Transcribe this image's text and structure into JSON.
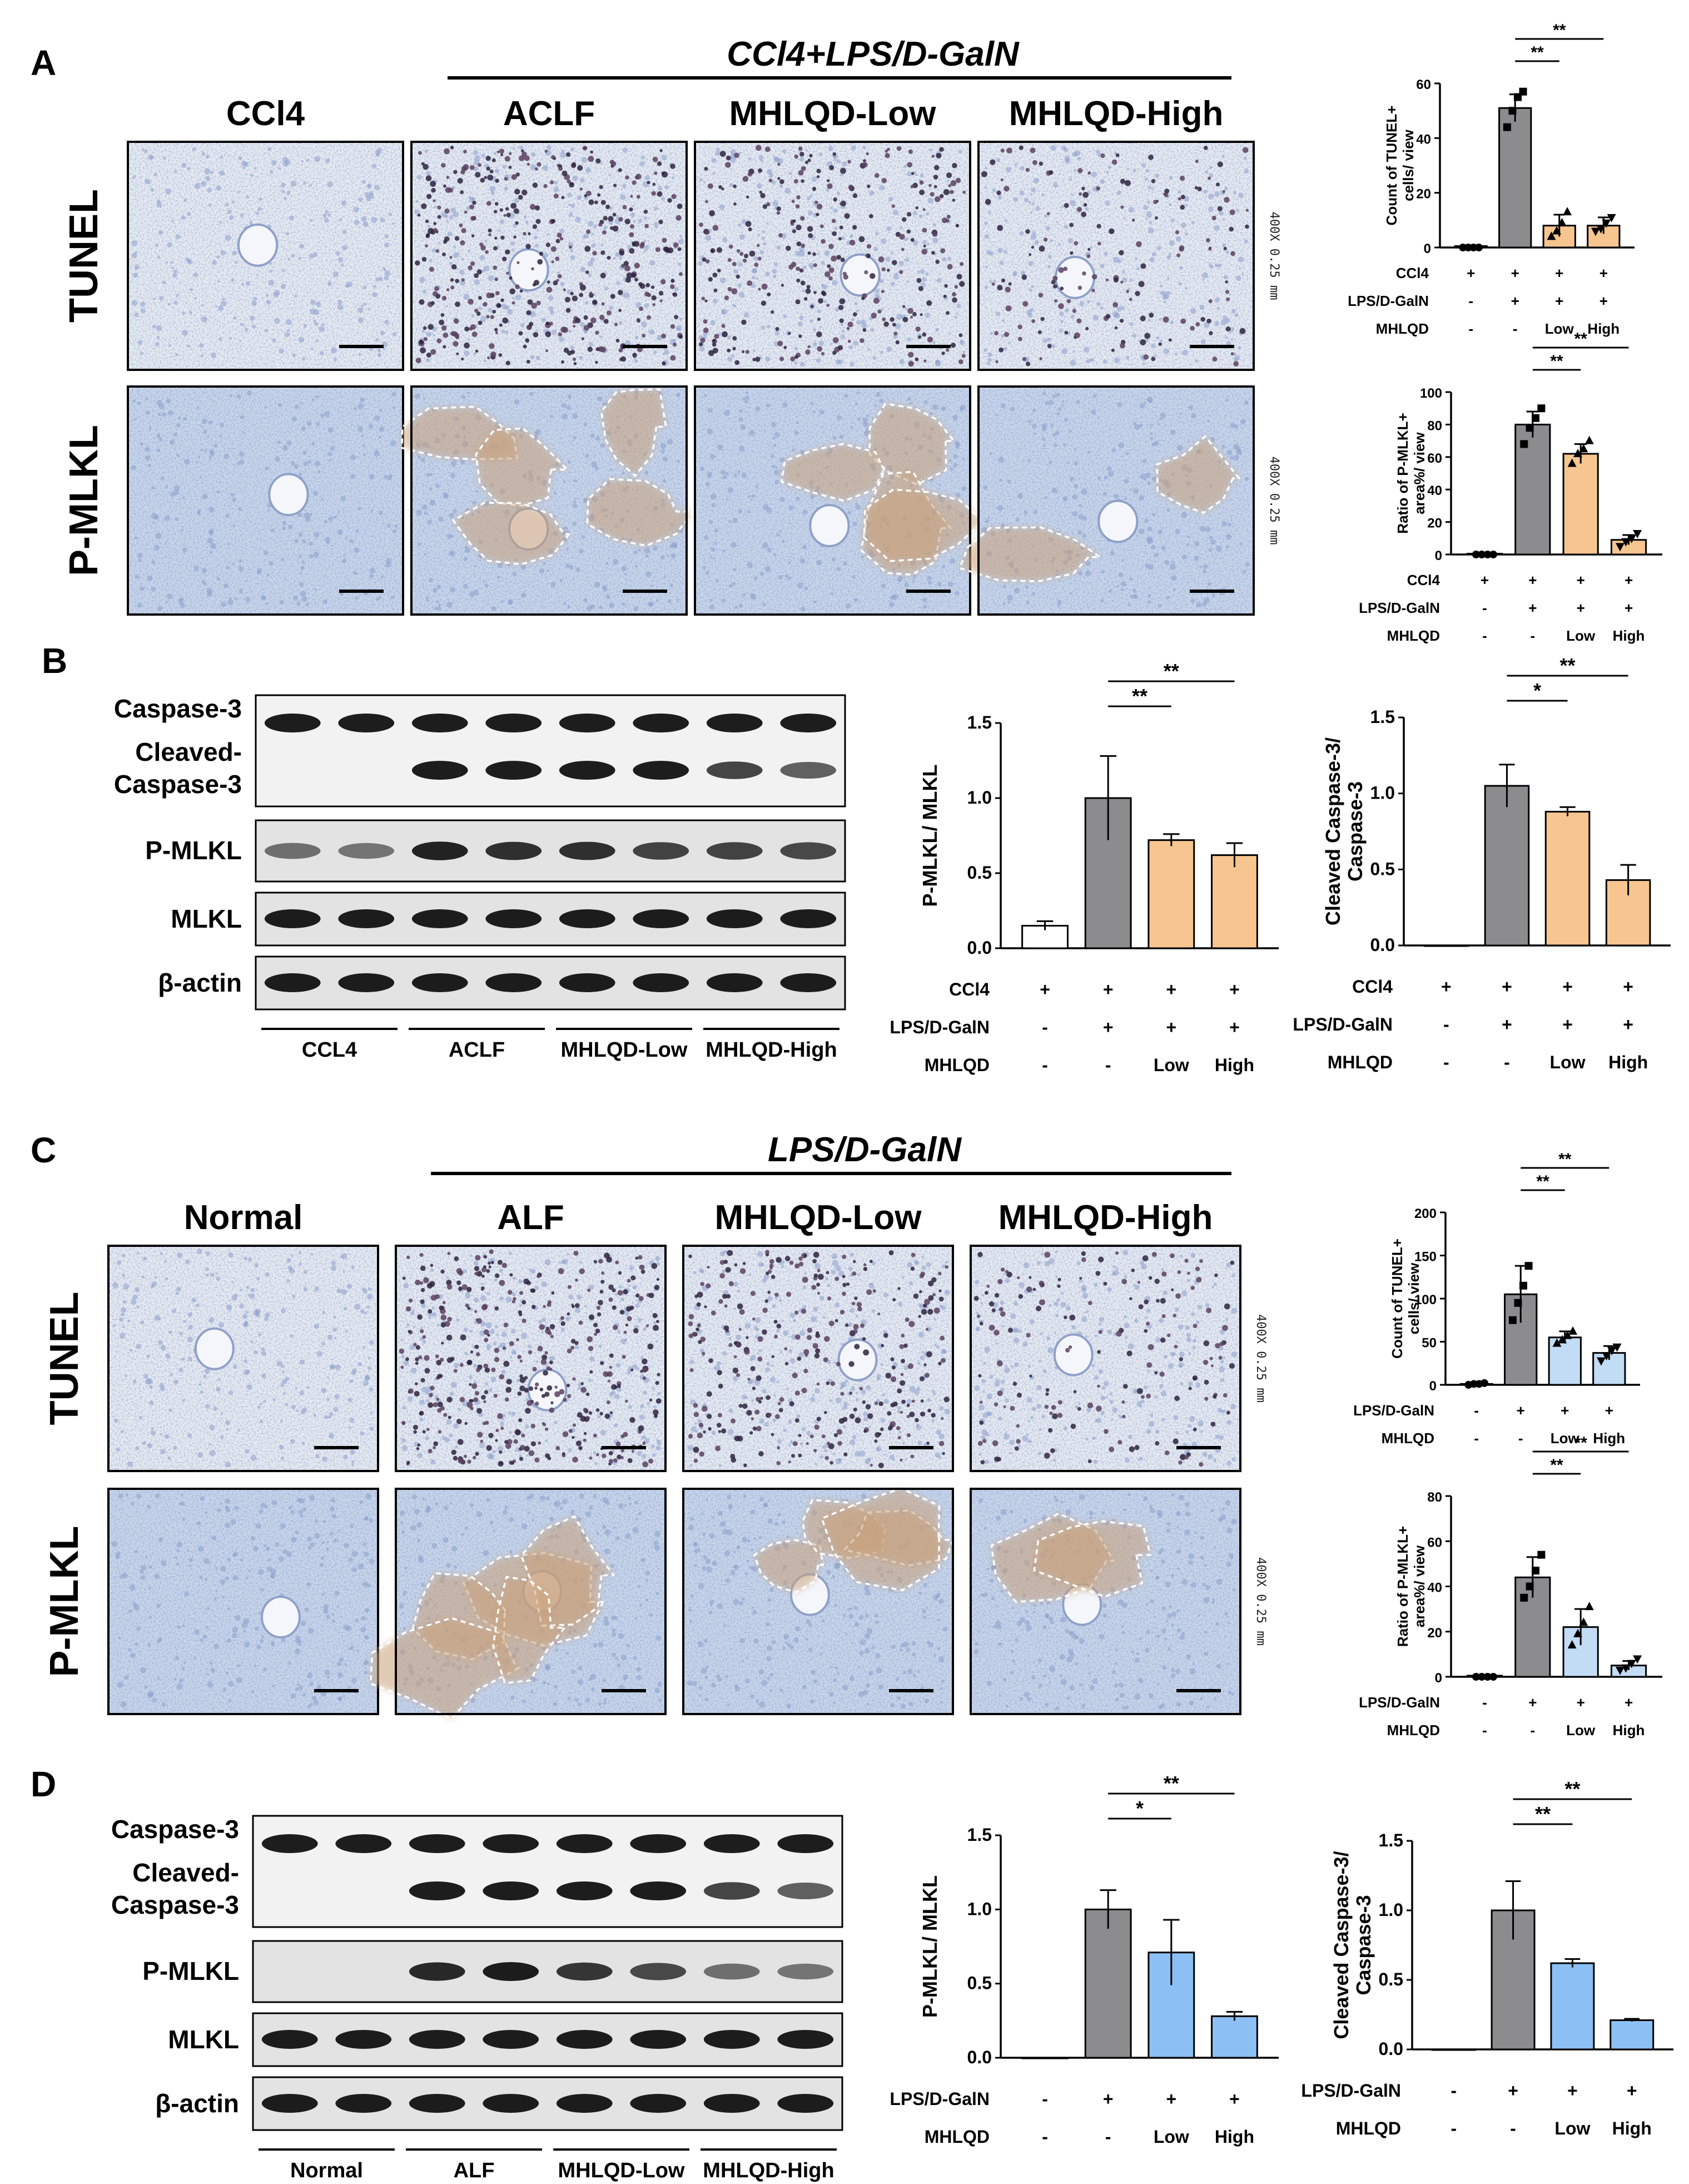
{
  "panels": {
    "A": {
      "letter": "A",
      "group_title": "CCl4+LPS/D-GalN",
      "columns": [
        "CCl4",
        "ACLF",
        "MHLQD-Low",
        "MHLQD-High"
      ],
      "rows": [
        "TUNEL",
        "P-MLKL"
      ],
      "magnification": "400X 0.25 mm"
    },
    "B": {
      "letter": "B",
      "blot_labels": [
        "Caspase-3",
        "Cleaved-\nCaspase-3",
        "P-MLKL",
        "MLKL",
        "β-actin"
      ],
      "blot_groups": [
        "CCL4",
        "ACLF",
        "MHLQD-Low",
        "MHLQD-High"
      ]
    },
    "C": {
      "letter": "C",
      "group_title": "LPS/D-GalN",
      "columns": [
        "Normal",
        "ALF",
        "MHLQD-Low",
        "MHLQD-High"
      ],
      "rows": [
        "TUNEL",
        "P-MLKL"
      ],
      "magnification": "400X 0.25 mm"
    },
    "D": {
      "letter": "D",
      "blot_labels": [
        "Caspase-3",
        "Cleaved-\nCaspase-3",
        "P-MLKL",
        "MLKL",
        "β-actin"
      ],
      "blot_groups": [
        "Normal",
        "ALF",
        "MHLQD-Low",
        "MHLQD-High"
      ]
    }
  },
  "colors": {
    "gray_bar": "#8c8c8e",
    "orange_bar": "#f7c58f",
    "light_blue_bar": "#c3dcf5",
    "blue_bar": "#8cc0f5",
    "white_bar": "#ffffff",
    "tissue_blue": "#c9d6ec",
    "tissue_brown": "#c9a079"
  },
  "chart_data": [
    {
      "type": "bar",
      "id": "A-tunel",
      "ylabel": "Count of TUNEL+\ncells/ view",
      "ylim": [
        0,
        60
      ],
      "yticks": [
        0,
        20,
        40,
        60
      ],
      "values": [
        0.5,
        51,
        8,
        8
      ],
      "errors": [
        0.3,
        5,
        4,
        3
      ],
      "points": [
        [
          0,
          0,
          0,
          0
        ],
        [
          44,
          50,
          55,
          57
        ],
        [
          4,
          6,
          9,
          13
        ],
        [
          6,
          7,
          9,
          11
        ]
      ],
      "bar_colors": [
        "#ffffff",
        "#8c8c8e",
        "#f7c58f",
        "#f7c58f"
      ],
      "condition_rows": [
        {
          "label": "CCl4",
          "marks": [
            "+",
            "+",
            "+",
            "+"
          ]
        },
        {
          "label": "LPS/D-GalN",
          "marks": [
            "-",
            "+",
            "+",
            "+"
          ]
        },
        {
          "label": "MHLQD",
          "marks": [
            "-",
            "-",
            "Low",
            "High"
          ]
        }
      ],
      "significance": [
        {
          "from": 1,
          "to": 2,
          "text": "**"
        },
        {
          "from": 1,
          "to": 3,
          "text": "**"
        }
      ]
    },
    {
      "type": "bar",
      "id": "A-pmlkl",
      "ylabel": "Ratio of P-MLKL+\narea%/ view",
      "ylim": [
        0,
        100
      ],
      "yticks": [
        0,
        20,
        40,
        60,
        80,
        100
      ],
      "values": [
        0.5,
        80,
        62,
        9
      ],
      "errors": [
        0.3,
        8,
        6,
        3
      ],
      "points": [
        [
          0,
          0,
          0,
          0
        ],
        [
          68,
          78,
          84,
          90
        ],
        [
          56,
          62,
          65,
          70
        ],
        [
          5,
          8,
          10,
          13
        ]
      ],
      "bar_colors": [
        "#ffffff",
        "#8c8c8e",
        "#f7c58f",
        "#f7c58f"
      ],
      "condition_rows": [
        {
          "label": "CCl4",
          "marks": [
            "+",
            "+",
            "+",
            "+"
          ]
        },
        {
          "label": "LPS/D-GalN",
          "marks": [
            "-",
            "+",
            "+",
            "+"
          ]
        },
        {
          "label": "MHLQD",
          "marks": [
            "-",
            "-",
            "Low",
            "High"
          ]
        }
      ],
      "significance": [
        {
          "from": 1,
          "to": 2,
          "text": "**"
        },
        {
          "from": 1,
          "to": 3,
          "text": "**"
        }
      ]
    },
    {
      "type": "bar",
      "id": "B-pmlkl",
      "ylabel": "P-MLKL/ MLKL",
      "ylim": [
        0,
        1.5
      ],
      "yticks": [
        "0.0",
        "0.5",
        "1.0",
        "1.5"
      ],
      "values": [
        0.15,
        1.0,
        0.72,
        0.62
      ],
      "errors": [
        0.03,
        0.28,
        0.04,
        0.08
      ],
      "points": [],
      "bar_colors": [
        "#ffffff",
        "#8c8c8e",
        "#f7c58f",
        "#f7c58f"
      ],
      "condition_rows": [
        {
          "label": "CCl4",
          "marks": [
            "+",
            "+",
            "+",
            "+"
          ]
        },
        {
          "label": "LPS/D-GalN",
          "marks": [
            "-",
            "+",
            "+",
            "+"
          ]
        },
        {
          "label": "MHLQD",
          "marks": [
            "-",
            "-",
            "Low",
            "High"
          ]
        }
      ],
      "significance": [
        {
          "from": 1,
          "to": 2,
          "text": "**"
        },
        {
          "from": 1,
          "to": 3,
          "text": "**"
        }
      ]
    },
    {
      "type": "bar",
      "id": "B-casp",
      "ylabel": "Cleaved Caspase-3/\nCaspase-3",
      "ylim": [
        0,
        1.5
      ],
      "yticks": [
        "0.0",
        "0.5",
        "1.0",
        "1.5"
      ],
      "values": [
        0,
        1.05,
        0.88,
        0.43
      ],
      "errors": [
        0,
        0.14,
        0.03,
        0.1
      ],
      "points": [],
      "bar_colors": [
        "#ffffff",
        "#8c8c8e",
        "#f7c58f",
        "#f7c58f"
      ],
      "condition_rows": [
        {
          "label": "CCl4",
          "marks": [
            "+",
            "+",
            "+",
            "+"
          ]
        },
        {
          "label": "LPS/D-GalN",
          "marks": [
            "-",
            "+",
            "+",
            "+"
          ]
        },
        {
          "label": "MHLQD",
          "marks": [
            "-",
            "-",
            "Low",
            "High"
          ]
        }
      ],
      "significance": [
        {
          "from": 1,
          "to": 2,
          "text": "*"
        },
        {
          "from": 1,
          "to": 3,
          "text": "**"
        }
      ]
    },
    {
      "type": "bar",
      "id": "C-tunel",
      "ylabel": "Count of TUNEL+\ncells/ view",
      "ylim": [
        0,
        200
      ],
      "yticks": [
        0,
        50,
        100,
        150,
        200
      ],
      "values": [
        1,
        105,
        55,
        37
      ],
      "errors": [
        1,
        33,
        7,
        8
      ],
      "points": [
        [
          0,
          1,
          1,
          2
        ],
        [
          75,
          95,
          115,
          138
        ],
        [
          48,
          52,
          57,
          62
        ],
        [
          28,
          34,
          40,
          44
        ]
      ],
      "bar_colors": [
        "#ffffff",
        "#8c8c8e",
        "#c3dcf5",
        "#c3dcf5"
      ],
      "condition_rows": [
        {
          "label": "LPS/D-GalN",
          "marks": [
            "-",
            "+",
            "+",
            "+"
          ]
        },
        {
          "label": "MHLQD",
          "marks": [
            "-",
            "-",
            "Low",
            "High"
          ]
        }
      ],
      "significance": [
        {
          "from": 1,
          "to": 2,
          "text": "**"
        },
        {
          "from": 1,
          "to": 3,
          "text": "**"
        }
      ]
    },
    {
      "type": "bar",
      "id": "C-pmlkl",
      "ylabel": "Ratio of P-MLKL+\narea%/ view",
      "ylim": [
        0,
        80
      ],
      "yticks": [
        0,
        20,
        40,
        60,
        80
      ],
      "values": [
        0.5,
        44,
        22,
        5
      ],
      "errors": [
        0.3,
        9,
        8,
        2
      ],
      "points": [
        [
          0,
          0,
          0,
          0
        ],
        [
          35,
          40,
          47,
          54
        ],
        [
          14,
          19,
          24,
          31
        ],
        [
          3,
          4,
          6,
          8
        ]
      ],
      "bar_colors": [
        "#ffffff",
        "#8c8c8e",
        "#c3dcf5",
        "#c3dcf5"
      ],
      "condition_rows": [
        {
          "label": "LPS/D-GalN",
          "marks": [
            "-",
            "+",
            "+",
            "+"
          ]
        },
        {
          "label": "MHLQD",
          "marks": [
            "-",
            "-",
            "Low",
            "High"
          ]
        }
      ],
      "significance": [
        {
          "from": 1,
          "to": 2,
          "text": "**"
        },
        {
          "from": 1,
          "to": 3,
          "text": "**"
        }
      ]
    },
    {
      "type": "bar",
      "id": "D-pmlkl",
      "ylabel": "P-MLKL/ MLKL",
      "ylim": [
        0,
        1.5
      ],
      "yticks": [
        "0.0",
        "0.5",
        "1.0",
        "1.5"
      ],
      "values": [
        0,
        1.0,
        0.71,
        0.28
      ],
      "errors": [
        0,
        0.13,
        0.22,
        0.03
      ],
      "points": [],
      "bar_colors": [
        "#ffffff",
        "#8c8c8e",
        "#8cc0f5",
        "#8cc0f5"
      ],
      "condition_rows": [
        {
          "label": "LPS/D-GalN",
          "marks": [
            "-",
            "+",
            "+",
            "+"
          ]
        },
        {
          "label": "MHLQD",
          "marks": [
            "-",
            "-",
            "Low",
            "High"
          ]
        }
      ],
      "significance": [
        {
          "from": 1,
          "to": 2,
          "text": "*"
        },
        {
          "from": 1,
          "to": 3,
          "text": "**"
        }
      ]
    },
    {
      "type": "bar",
      "id": "D-casp",
      "ylabel": "Cleaved Caspase-3/\nCaspase-3",
      "ylim": [
        0,
        1.5
      ],
      "yticks": [
        "0.0",
        "0.5",
        "1.0",
        "1.5"
      ],
      "values": [
        0,
        1.0,
        0.62,
        0.21
      ],
      "errors": [
        0,
        0.21,
        0.03,
        0.01
      ],
      "points": [],
      "bar_colors": [
        "#ffffff",
        "#8c8c8e",
        "#8cc0f5",
        "#8cc0f5"
      ],
      "condition_rows": [
        {
          "label": "LPS/D-GalN",
          "marks": [
            "-",
            "+",
            "+",
            "+"
          ]
        },
        {
          "label": "MHLQD",
          "marks": [
            "-",
            "-",
            "Low",
            "High"
          ]
        }
      ],
      "significance": [
        {
          "from": 1,
          "to": 2,
          "text": "**"
        },
        {
          "from": 1,
          "to": 3,
          "text": "**"
        }
      ]
    }
  ]
}
